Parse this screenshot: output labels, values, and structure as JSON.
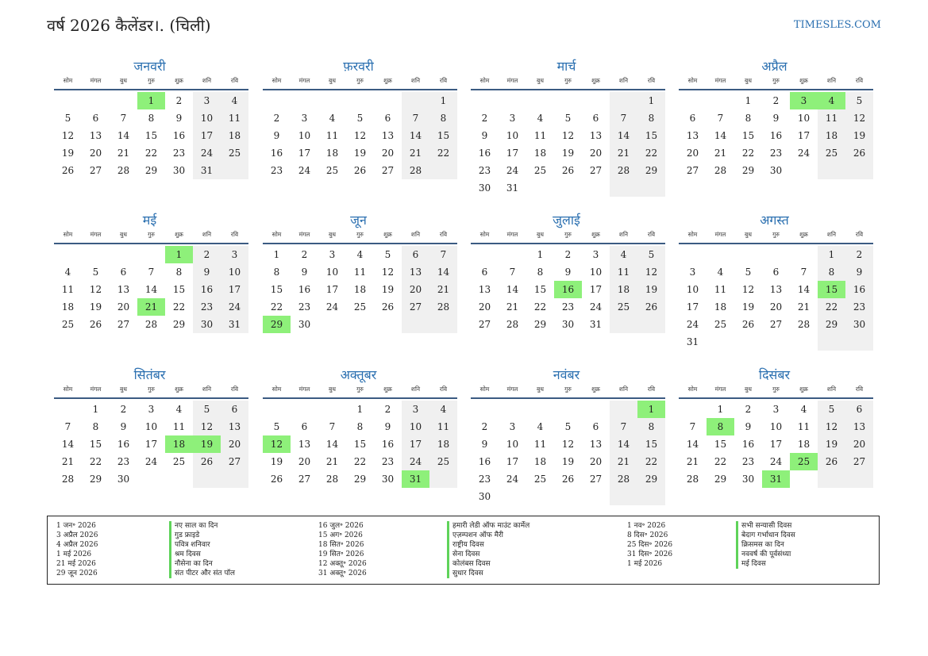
{
  "header": {
    "title": "वर्ष 2026 कैलेंडर।. (चिली)",
    "site": "TIMESLES.COM"
  },
  "weekdays": [
    "सोम",
    "मंगल",
    "बुध",
    "गुरु",
    "शुक्र",
    "शनि",
    "रवि"
  ],
  "months": [
    {
      "name": "जनवरी",
      "offset": 3,
      "days": 31,
      "holidays": [
        1
      ]
    },
    {
      "name": "फ़रवरी",
      "offset": 6,
      "days": 28,
      "holidays": []
    },
    {
      "name": "मार्च",
      "offset": 6,
      "days": 31,
      "holidays": []
    },
    {
      "name": "अप्रैल",
      "offset": 2,
      "days": 30,
      "holidays": [
        3,
        4
      ]
    },
    {
      "name": "मई",
      "offset": 4,
      "days": 31,
      "holidays": [
        1,
        21
      ]
    },
    {
      "name": "जून",
      "offset": 0,
      "days": 30,
      "holidays": [
        29
      ]
    },
    {
      "name": "जुलाई",
      "offset": 2,
      "days": 31,
      "holidays": [
        16
      ]
    },
    {
      "name": "अगस्त",
      "offset": 5,
      "days": 31,
      "holidays": [
        15
      ]
    },
    {
      "name": "सितंबर",
      "offset": 1,
      "days": 30,
      "holidays": [
        18,
        19
      ]
    },
    {
      "name": "अक्तूबर",
      "offset": 3,
      "days": 31,
      "holidays": [
        12,
        31
      ]
    },
    {
      "name": "नवंबर",
      "offset": 6,
      "days": 30,
      "holidays": [
        1
      ]
    },
    {
      "name": "दिसंबर",
      "offset": 1,
      "days": 31,
      "holidays": [
        8,
        25,
        31
      ]
    }
  ],
  "holidays": [
    {
      "date": "1 जन॰ 2026",
      "name": "नए साल का दिन"
    },
    {
      "date": "3 अप्रैल 2026",
      "name": "गुड फ्राइडे"
    },
    {
      "date": "4 अप्रैल 2026",
      "name": "पवित्र शनिवार"
    },
    {
      "date": "1 मई 2026",
      "name": "श्रम दिवस"
    },
    {
      "date": "21 मई 2026",
      "name": "नौसेना का दिन"
    },
    {
      "date": "29 जून 2026",
      "name": "संत पीटर और संत पॉल"
    },
    {
      "date": "16 जुल॰ 2026",
      "name": "हमारी लेडी ऑफ माउंट कार्मेल"
    },
    {
      "date": "15 अग॰ 2026",
      "name": "एज़म्पशन ऑफ मैरी"
    },
    {
      "date": "18 सित॰ 2026",
      "name": "राष्ट्रीय दिवस"
    },
    {
      "date": "19 सित॰ 2026",
      "name": "सेना दिवस"
    },
    {
      "date": "12 अक्तू॰ 2026",
      "name": "कोलंबस दिवस"
    },
    {
      "date": "31 अक्तू॰ 2026",
      "name": "सुधार दिवस"
    },
    {
      "date": "1 नव॰ 2026",
      "name": "सभी सन्यासी दिवस"
    },
    {
      "date": "8 दिस॰ 2026",
      "name": "बेदाग गर्भाधान दिवस"
    },
    {
      "date": "25 दिस॰ 2026",
      "name": "क्रिसमस का दिन"
    },
    {
      "date": "31 दिस॰ 2026",
      "name": "नववर्ष की पूर्वसंध्या"
    },
    {
      "date": "1 मई 2026",
      "name": "मई दिवस"
    }
  ]
}
